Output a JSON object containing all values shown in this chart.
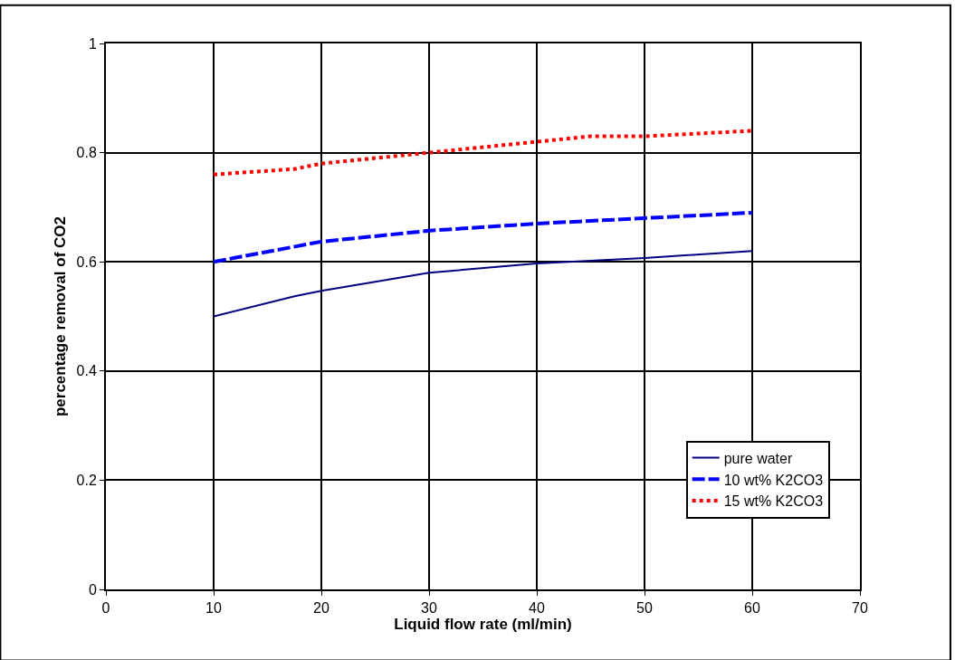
{
  "chart_data": {
    "type": "line",
    "xlabel": "Liquid flow rate (ml/min)",
    "ylabel": "percentage removal of CO2",
    "xlim": [
      0,
      70
    ],
    "xticks": [
      0,
      10,
      20,
      30,
      40,
      50,
      60,
      70
    ],
    "ylim": [
      0,
      1
    ],
    "yticks": [
      0,
      0.2,
      0.4,
      0.6,
      0.8,
      1
    ],
    "grid": true,
    "legend": "bottom right",
    "marker": "none",
    "series": [
      {
        "name": "pure water",
        "color": "#000080",
        "line_style": "solid",
        "x": [
          10,
          17.5,
          20,
          30,
          40,
          50,
          60
        ],
        "values": [
          0.5,
          0.537,
          0.547,
          0.58,
          0.597,
          0.607,
          0.62
        ]
      },
      {
        "name": "10 wt% K2CO3",
        "color": "#0000ff",
        "line_style": "dashed",
        "x": [
          10,
          20,
          30,
          40,
          50,
          60
        ],
        "values": [
          0.6,
          0.637,
          0.657,
          0.67,
          0.68,
          0.69
        ]
      },
      {
        "name": "15 wt% K2CO3",
        "color": "#ff0000",
        "line_style": "dotted",
        "x": [
          10,
          17.5,
          20,
          30,
          35,
          40,
          45,
          50,
          60
        ],
        "values": [
          0.76,
          0.77,
          0.78,
          0.8,
          0.81,
          0.82,
          0.83,
          0.83,
          0.84
        ]
      }
    ]
  }
}
